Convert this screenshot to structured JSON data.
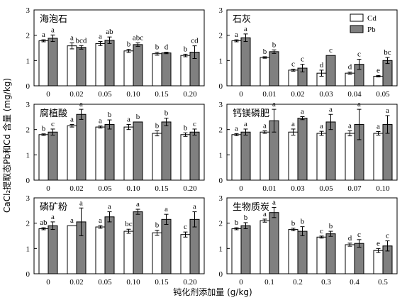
{
  "colors": {
    "cd": "#ffffff",
    "pb": "#808080",
    "stroke": "#000000"
  },
  "axis_titles": {
    "ylabel": "CaCl₂提取态Pb和Cd 含量 (mg/kg)",
    "xlabel": "钝化剂添加量 (g/kg)"
  },
  "legend": {
    "cd": "Cd",
    "pb": "Pb"
  },
  "chart_data": [
    {
      "type": "bar",
      "title": "海泡石",
      "categories": [
        "0",
        "0.02",
        "0.05",
        "0.10",
        "0.15",
        "0.20"
      ],
      "ylim": [
        0,
        3
      ],
      "yticks": [
        0,
        1,
        2,
        3
      ],
      "series": [
        {
          "name": "Cd",
          "values": [
            1.78,
            1.58,
            1.67,
            1.38,
            1.27,
            1.2
          ],
          "errors": [
            0.04,
            0.12,
            0.08,
            0.06,
            0.06,
            0.05
          ],
          "labels": [
            "a",
            "a",
            "a",
            "b",
            "b",
            "b"
          ]
        },
        {
          "name": "Pb",
          "values": [
            1.88,
            1.52,
            1.8,
            1.63,
            1.3,
            1.33
          ],
          "errors": [
            0.13,
            0.07,
            0.13,
            0.07,
            0.03,
            0.25
          ],
          "labels": [
            "a",
            "bcd",
            "ab",
            "abc",
            "d",
            "cd"
          ]
        }
      ]
    },
    {
      "type": "bar",
      "title": "石灰",
      "categories": [
        "0",
        "0.01",
        "0.02",
        "0.03",
        "0.04",
        "0.05"
      ],
      "ylim": [
        0,
        3
      ],
      "yticks": [
        0,
        1,
        2,
        3
      ],
      "series": [
        {
          "name": "Cd",
          "values": [
            1.78,
            1.12,
            0.62,
            0.5,
            0.5,
            0.38
          ],
          "errors": [
            0.04,
            0.03,
            0.04,
            0.12,
            0.04,
            0.03
          ],
          "labels": [
            "a",
            "b",
            "c",
            "d",
            "d",
            "e"
          ]
        },
        {
          "name": "Pb",
          "values": [
            1.9,
            1.35,
            0.7,
            1.2,
            0.85,
            1.0
          ],
          "errors": [
            0.15,
            0.07,
            0.15,
            0.0,
            0.2,
            0.12
          ],
          "labels": [
            "a",
            "b",
            "c",
            "c",
            "c",
            "bc"
          ]
        }
      ]
    },
    {
      "type": "bar",
      "title": "腐植酸",
      "categories": [
        "0",
        "0.02",
        "0.05",
        "0.10",
        "0.15",
        "0.20"
      ],
      "ylim": [
        0,
        3
      ],
      "yticks": [
        0,
        1,
        2,
        3
      ],
      "series": [
        {
          "name": "Cd",
          "values": [
            1.8,
            2.15,
            2.1,
            2.1,
            1.85,
            1.8
          ],
          "errors": [
            0.03,
            0.05,
            0.04,
            0.1,
            0.1,
            0.07
          ],
          "labels": [
            "b",
            "a",
            "a",
            "a",
            "b",
            "b"
          ]
        },
        {
          "name": "Pb",
          "values": [
            1.9,
            2.6,
            2.2,
            2.3,
            2.3,
            1.9
          ],
          "errors": [
            0.12,
            0.2,
            0.18,
            0.0,
            0.15,
            0.12
          ],
          "labels": [
            "c",
            "a",
            "b",
            "b",
            "b",
            "c"
          ]
        }
      ]
    },
    {
      "type": "bar",
      "title": "钙镁磷肥",
      "categories": [
        "0",
        "0.01",
        "0.03",
        "0.05",
        "0.07",
        "0.10"
      ],
      "ylim": [
        0,
        3
      ],
      "yticks": [
        0,
        1,
        2,
        3
      ],
      "series": [
        {
          "name": "Cd",
          "values": [
            1.8,
            1.9,
            1.9,
            1.85,
            1.85,
            1.85
          ],
          "errors": [
            0.04,
            0.05,
            0.12,
            0.08,
            0.1,
            0.07
          ],
          "labels": [
            "a",
            "a",
            "a",
            "a",
            "a",
            "a"
          ]
        },
        {
          "name": "Pb",
          "values": [
            1.9,
            2.35,
            2.45,
            2.3,
            2.2,
            2.2
          ],
          "errors": [
            0.12,
            0.45,
            0.06,
            0.3,
            0.6,
            0.35
          ],
          "labels": [
            "a",
            "a",
            "a",
            "a",
            "a",
            "a"
          ]
        }
      ]
    },
    {
      "type": "bar",
      "title": "磷矿粉",
      "categories": [
        "0",
        "0.02",
        "0.05",
        "0.10",
        "0.15",
        "0.20"
      ],
      "ylim": [
        0,
        3
      ],
      "yticks": [
        0,
        1,
        2,
        3
      ],
      "series": [
        {
          "name": "Cd",
          "values": [
            1.78,
            1.9,
            1.85,
            1.68,
            1.62,
            1.55
          ],
          "errors": [
            0.04,
            0.0,
            0.05,
            0.08,
            0.1,
            0.1
          ],
          "labels": [
            "ab",
            "a",
            "a",
            "bc",
            "b",
            "c"
          ]
        },
        {
          "name": "Pb",
          "values": [
            1.9,
            2.05,
            2.25,
            2.45,
            2.15,
            2.15
          ],
          "errors": [
            0.15,
            0.55,
            0.2,
            0.1,
            0.2,
            0.3
          ],
          "labels": [
            "a",
            "a",
            "a",
            "a",
            "a",
            "a"
          ]
        }
      ]
    },
    {
      "type": "bar",
      "title": "生物质炭",
      "categories": [
        "0",
        "0.1",
        "0.2",
        "0.3",
        "0.4",
        "0.5"
      ],
      "ylim": [
        0,
        3
      ],
      "yticks": [
        0,
        1,
        2,
        3
      ],
      "series": [
        {
          "name": "Cd",
          "values": [
            1.78,
            2.1,
            1.75,
            1.45,
            1.15,
            0.92
          ],
          "errors": [
            0.04,
            0.06,
            0.05,
            0.04,
            0.06,
            0.08
          ],
          "labels": [
            "b",
            "a",
            "b",
            "c",
            "d",
            "e"
          ]
        },
        {
          "name": "Pb",
          "values": [
            1.9,
            2.42,
            1.68,
            1.58,
            1.2,
            1.1
          ],
          "errors": [
            0.12,
            0.2,
            0.18,
            0.1,
            0.15,
            0.2
          ],
          "labels": [
            "b",
            "a",
            "b",
            "b",
            "c",
            "c"
          ]
        }
      ]
    }
  ]
}
